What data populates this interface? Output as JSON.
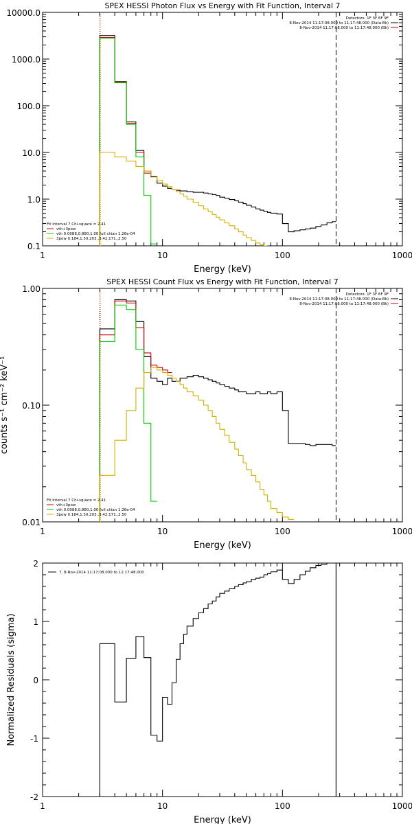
{
  "chart_data": [
    {
      "type": "line",
      "title": "SPEX HESSI Photon Flux vs Energy with Fit Function, Interval 7",
      "xlabel": "Energy (keV)",
      "ylabel": "",
      "xscale": "log",
      "yscale": "log",
      "xlim": [
        1,
        1000
      ],
      "ylim": [
        0.1,
        10000
      ],
      "x_ticks": [
        "1",
        "10",
        "100",
        "1000"
      ],
      "y_ticks": [
        "0.1",
        "1.0",
        "10.0",
        "100.0",
        "1000.0",
        "10000.0"
      ],
      "info_lines": [
        "Detectors: 1F 3F 6F 9F",
        "8-Nov-2014 11:17:08.000 to 11:17:48.000 (Data-Bk)",
        "8-Nov-2014 11:17:08.000 to 11:17:48.000 (Bk)"
      ],
      "legend_title": "Fit Interval 7   Chi-square = 2.41",
      "legend_entries": [
        {
          "label": "vth+3pow",
          "color": "#cc0000"
        },
        {
          "label": "vth 0.0088,0.880,1.00  full chian 1.26e-04",
          "color": "#00cc00"
        },
        {
          "label": "3pow 0.184,1.50,203.,3.42,171.,2.50",
          "color": "#d4b000"
        }
      ],
      "vlines": [
        {
          "x": 3,
          "style": "dotted",
          "color": "#000000"
        },
        {
          "x": 3,
          "style": "dotted",
          "color": "#ff9900"
        },
        {
          "x": 280,
          "style": "dashed",
          "color": "#000000"
        }
      ],
      "series": [
        {
          "color": "#000000",
          "edges": [
            3,
            4,
            5,
            6,
            7,
            8,
            9,
            10,
            11,
            12,
            13,
            14,
            15,
            16,
            18,
            20,
            22,
            24,
            26,
            28,
            30,
            33,
            36,
            40,
            43,
            47,
            50,
            55,
            60,
            65,
            70,
            75,
            80,
            90,
            100,
            112,
            125,
            140,
            155,
            170,
            190,
            210,
            235,
            260,
            280
          ],
          "values": [
            3200,
            330,
            45,
            11,
            4,
            3,
            2.2,
            1.9,
            1.7,
            1.6,
            1.55,
            1.5,
            1.5,
            1.45,
            1.4,
            1.4,
            1.35,
            1.3,
            1.25,
            1.2,
            1.1,
            1.05,
            0.98,
            0.92,
            0.86,
            0.8,
            0.74,
            0.68,
            0.62,
            0.58,
            0.55,
            0.52,
            0.5,
            0.48,
            0.3,
            0.2,
            0.21,
            0.22,
            0.23,
            0.24,
            0.26,
            0.28,
            0.31,
            0.33
          ]
        },
        {
          "color": "#cc0000",
          "edges": [
            3,
            4,
            5,
            6,
            7,
            8
          ],
          "values": [
            2900,
            320,
            42,
            10,
            3.6
          ]
        },
        {
          "color": "#00cc00",
          "edges": [
            3,
            4,
            5,
            6,
            7,
            8,
            9
          ],
          "values": [
            2800,
            310,
            40,
            8,
            1.2,
            0.11
          ]
        },
        {
          "color": "#d4b000",
          "edges": [
            3,
            4,
            5,
            6,
            7,
            8,
            9,
            10,
            11,
            12,
            13,
            14,
            15,
            16,
            18,
            20,
            22,
            24,
            26,
            28,
            30,
            33,
            36,
            40,
            43,
            47,
            50,
            55,
            60,
            65,
            70,
            75
          ],
          "values": [
            10,
            8,
            6.5,
            5,
            4,
            3.1,
            2.5,
            2.1,
            1.85,
            1.6,
            1.45,
            1.3,
            1.15,
            1.0,
            0.85,
            0.72,
            0.62,
            0.54,
            0.47,
            0.41,
            0.36,
            0.31,
            0.27,
            0.23,
            0.2,
            0.17,
            0.15,
            0.13,
            0.115,
            0.105,
            0.1
          ]
        }
      ]
    },
    {
      "type": "line",
      "title": "SPEX HESSI Count Flux vs Energy with Fit Function, Interval 7",
      "xlabel": "Energy (keV)",
      "ylabel": "counts s⁻¹ cm⁻² keV⁻¹",
      "xscale": "log",
      "yscale": "log",
      "xlim": [
        1,
        1000
      ],
      "ylim": [
        0.01,
        1.0
      ],
      "x_ticks": [
        "1",
        "10",
        "100",
        "1000"
      ],
      "y_ticks": [
        "0.01",
        "0.10",
        "1.00"
      ],
      "info_lines": [
        "Detectors: 1F 3F 6F 9F",
        "8-Nov-2014 11:17:08.000 to 11:17:48.000 (Data-Bk)",
        "8-Nov-2014 11:17:08.000 to 11:17:48.000 (Bk)"
      ],
      "legend_title": "Fit Interval 7   Chi-square = 2.41",
      "legend_entries": [
        {
          "label": "vth+3pow",
          "color": "#cc0000"
        },
        {
          "label": "vth 0.0088,0.880,1.00  full chian 1.26e-04",
          "color": "#00cc00"
        },
        {
          "label": "3pow 0.184,1.50,203.,3.42,171.,2.50",
          "color": "#d4b000"
        }
      ],
      "vlines": [
        {
          "x": 3,
          "style": "dotted",
          "color": "#000000"
        },
        {
          "x": 3,
          "style": "dotted",
          "color": "#ff9900"
        },
        {
          "x": 280,
          "style": "dashed",
          "color": "#000000"
        }
      ],
      "series": [
        {
          "color": "#000000",
          "edges": [
            3,
            4,
            5,
            6,
            7,
            8,
            9,
            10,
            11,
            12,
            13,
            14,
            15,
            16,
            18,
            20,
            22,
            24,
            26,
            28,
            30,
            33,
            36,
            40,
            43,
            47,
            50,
            55,
            60,
            65,
            70,
            75,
            80,
            90,
            100,
            112,
            125,
            140,
            155,
            170,
            190,
            210,
            235,
            260,
            280
          ],
          "values": [
            0.45,
            0.8,
            0.78,
            0.52,
            0.26,
            0.17,
            0.16,
            0.15,
            0.17,
            0.16,
            0.16,
            0.17,
            0.17,
            0.175,
            0.18,
            0.175,
            0.17,
            0.165,
            0.16,
            0.155,
            0.15,
            0.145,
            0.14,
            0.135,
            0.13,
            0.13,
            0.125,
            0.125,
            0.13,
            0.125,
            0.125,
            0.13,
            0.125,
            0.13,
            0.09,
            0.047,
            0.047,
            0.047,
            0.046,
            0.045,
            0.046,
            0.046,
            0.046,
            0.045
          ]
        },
        {
          "color": "#cc0000",
          "edges": [
            3,
            4,
            5,
            6,
            7,
            8,
            9,
            10,
            11,
            12
          ],
          "values": [
            0.4,
            0.78,
            0.75,
            0.46,
            0.28,
            0.22,
            0.21,
            0.2,
            0.19
          ]
        },
        {
          "color": "#00cc00",
          "edges": [
            3,
            4,
            5,
            6,
            7,
            8,
            9
          ],
          "values": [
            0.35,
            0.72,
            0.66,
            0.3,
            0.07,
            0.015
          ]
        },
        {
          "color": "#d4b000",
          "edges": [
            3,
            4,
            5,
            6,
            7,
            8,
            9,
            10,
            11,
            12,
            13,
            14,
            15,
            16,
            18,
            20,
            22,
            24,
            26,
            28,
            30,
            33,
            36,
            40,
            43,
            47,
            50,
            55,
            60,
            65,
            70,
            75,
            80,
            90,
            100,
            112,
            125
          ],
          "values": [
            0.025,
            0.05,
            0.09,
            0.14,
            0.19,
            0.21,
            0.2,
            0.19,
            0.18,
            0.17,
            0.16,
            0.15,
            0.14,
            0.13,
            0.12,
            0.11,
            0.1,
            0.09,
            0.08,
            0.07,
            0.062,
            0.055,
            0.048,
            0.042,
            0.037,
            0.032,
            0.028,
            0.025,
            0.022,
            0.019,
            0.017,
            0.015,
            0.013,
            0.012,
            0.011,
            0.0105
          ]
        }
      ]
    },
    {
      "type": "line",
      "title": "",
      "xlabel": "Energy (keV)",
      "ylabel": "Normalized Residuals (sigma)",
      "xscale": "log",
      "yscale": "linear",
      "xlim": [
        1,
        1000
      ],
      "ylim": [
        -2,
        2
      ],
      "x_ticks": [
        "1",
        "10",
        "100",
        "1000"
      ],
      "y_ticks": [
        "-2",
        "-1",
        "0",
        "1",
        "2"
      ],
      "legend_title": "",
      "legend_entries": [
        {
          "label": "7.  8-Nov-2014 11:17:08.000 to 11:17:48.000",
          "color": "#000000"
        }
      ],
      "vlines": [
        {
          "x": 280,
          "style": "solid",
          "color": "#000000"
        }
      ],
      "series": [
        {
          "color": "#000000",
          "edges": [
            3,
            4,
            5,
            6,
            7,
            8,
            9,
            10,
            11,
            12,
            13,
            14,
            15,
            16,
            18,
            20,
            22,
            24,
            26,
            28,
            30,
            33,
            36,
            40,
            43,
            47,
            50,
            55,
            60,
            65,
            70,
            75,
            80,
            90,
            100,
            112,
            125,
            140,
            155,
            170,
            190,
            210,
            235,
            260,
            280
          ],
          "values": [
            0.62,
            -0.38,
            0.37,
            0.74,
            0.38,
            -0.95,
            -1.05,
            -0.3,
            -0.42,
            -0.05,
            0.35,
            0.62,
            0.78,
            0.92,
            1.05,
            1.15,
            1.22,
            1.3,
            1.35,
            1.42,
            1.48,
            1.52,
            1.56,
            1.6,
            1.63,
            1.66,
            1.68,
            1.72,
            1.74,
            1.76,
            1.8,
            1.82,
            1.85,
            1.88,
            1.72,
            1.65,
            1.72,
            1.8,
            1.86,
            1.92,
            1.96,
            1.98,
            2.0,
            2.02
          ]
        }
      ],
      "floor": -2
    }
  ]
}
